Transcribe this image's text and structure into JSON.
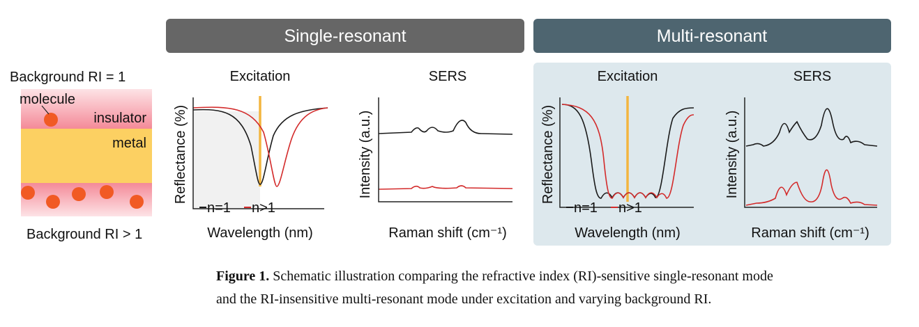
{
  "headers": {
    "single": "Single-resonant",
    "multi": "Multi-resonant"
  },
  "schematic": {
    "top_label": "Background RI = 1",
    "molecule": "molecule",
    "insulator": "insulator",
    "metal": "metal",
    "bottom_label": "Background RI > 1"
  },
  "panels": [
    {
      "title": "Excitation",
      "y_label": "Reflectance (%)",
      "x_label": "Wavelength (nm)",
      "legend": [
        "n=1",
        "n>1"
      ]
    },
    {
      "title": "SERS",
      "y_label": "Intensity (a.u.)",
      "x_label": "Raman shift (cm⁻¹)"
    },
    {
      "title": "Excitation",
      "y_label": "Reflectance (%)",
      "x_label": "Wavelength (nm)",
      "legend": [
        "n=1",
        "n>1"
      ]
    },
    {
      "title": "SERS",
      "y_label": "Intensity (a.u.)",
      "x_label": "Raman shift (cm⁻¹)"
    }
  ],
  "caption": {
    "label": "Figure 1.",
    "lines": [
      "Schematic illustration comparing the refractive index (RI)-sensitive single-resonant mode",
      "and the RI-insensitive multi-resonant mode under excitation and varying background RI."
    ]
  }
}
